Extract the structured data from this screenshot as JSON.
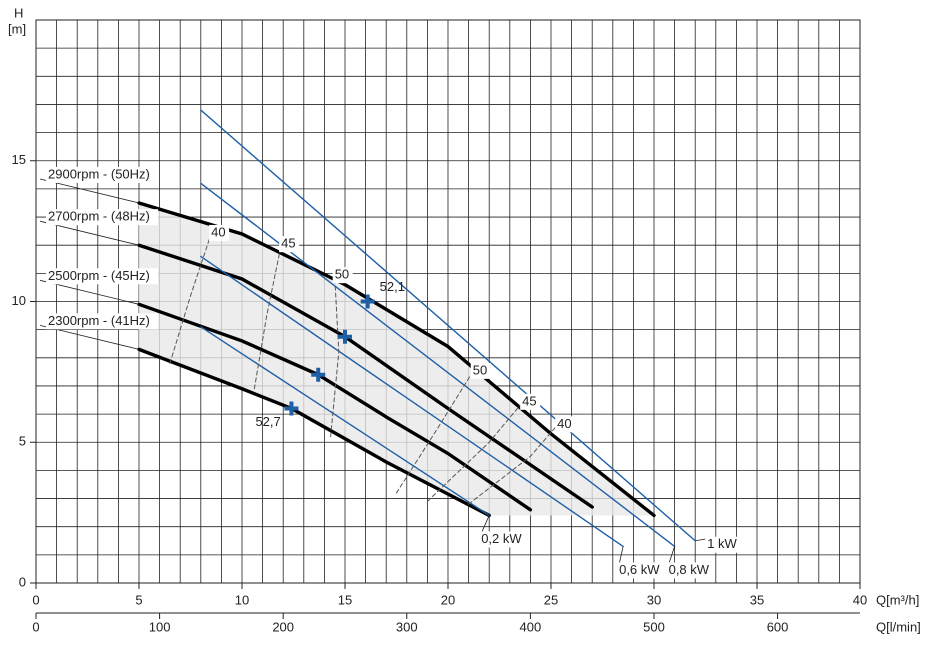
{
  "chart_data": {
    "type": "line",
    "y_label": "H",
    "y_unit": "[m]",
    "x_label": "Q[m³/h]",
    "x2_label": "Q[l/min]",
    "xlim": [
      0,
      40
    ],
    "xticks": [
      0,
      5,
      10,
      15,
      20,
      25,
      30,
      35,
      40
    ],
    "x2lim": [
      0,
      666.7
    ],
    "x2ticks": [
      0,
      100,
      200,
      300,
      400,
      500,
      600
    ],
    "ylim": [
      0,
      20
    ],
    "yticks": [
      0,
      5,
      10,
      15
    ],
    "grid": true,
    "minor_grid_step": 1,
    "series": [
      {
        "name": "2900rpm - (50Hz)",
        "kind": "speed",
        "color": "#000000",
        "x": [
          5,
          10,
          15,
          20,
          25,
          30
        ],
        "values": [
          13.5,
          12.4,
          10.6,
          8.4,
          5.3,
          2.4
        ]
      },
      {
        "name": "2700rpm - (48Hz)",
        "kind": "speed",
        "color": "#000000",
        "x": [
          5,
          10,
          15,
          20,
          25,
          27
        ],
        "values": [
          12.0,
          10.8,
          8.75,
          6.2,
          3.7,
          2.7
        ]
      },
      {
        "name": "2500rpm - (45Hz)",
        "kind": "speed",
        "color": "#000000",
        "x": [
          5,
          10,
          13.7,
          17,
          20,
          24
        ],
        "values": [
          9.9,
          8.6,
          7.4,
          5.9,
          4.6,
          2.6
        ]
      },
      {
        "name": "2300rpm - (41Hz)",
        "kind": "speed",
        "color": "#000000",
        "x": [
          5,
          10,
          12.4,
          17,
          22
        ],
        "values": [
          8.3,
          6.9,
          6.2,
          4.3,
          2.4
        ]
      },
      {
        "name": "1 kW",
        "kind": "power",
        "color": "#1f5fa6",
        "x": [
          8,
          32
        ],
        "values": [
          16.8,
          1.5
        ]
      },
      {
        "name": "0,8 kW",
        "kind": "power",
        "color": "#1f5fa6",
        "x": [
          8,
          31
        ],
        "values": [
          14.2,
          1.3
        ]
      },
      {
        "name": "0,6 kW",
        "kind": "power",
        "color": "#1f5fa6",
        "x": [
          8,
          28.5
        ],
        "values": [
          11.6,
          1.3
        ]
      },
      {
        "name": "0,2 kW",
        "kind": "power",
        "color": "#1f5fa6",
        "x": [
          8,
          22
        ],
        "values": [
          9.1,
          2.4
        ]
      },
      {
        "name": "40",
        "kind": "efficiency",
        "color": "#555555",
        "x": [
          6.5,
          7.5,
          8.5
        ],
        "values": [
          7.8,
          10.2,
          12.4
        ]
      },
      {
        "name": "45",
        "kind": "efficiency",
        "color": "#555555",
        "x": [
          10.6,
          11.2,
          11.9
        ],
        "values": [
          6.9,
          9.5,
          12.0
        ]
      },
      {
        "name": "50",
        "kind": "efficiency",
        "color": "#555555",
        "x": [
          14.3,
          14.7,
          14.5
        ],
        "values": [
          5.2,
          8.2,
          10.9
        ]
      },
      {
        "name": "50",
        "kind": "efficiency",
        "color": "#555555",
        "x": [
          17.5,
          19.5,
          21.2
        ],
        "values": [
          3.2,
          5.5,
          7.5
        ]
      },
      {
        "name": "45",
        "kind": "efficiency",
        "color": "#555555",
        "x": [
          19,
          22,
          23.6
        ],
        "values": [
          2.9,
          5.0,
          6.4
        ]
      },
      {
        "name": "40",
        "kind": "efficiency",
        "color": "#555555",
        "x": [
          21,
          24,
          25.3
        ],
        "values": [
          2.8,
          4.5,
          5.6
        ]
      }
    ],
    "points": {
      "color": "#1f5fa6",
      "x": [
        16.1,
        15,
        13.7,
        12.4
      ],
      "values": [
        10,
        8.75,
        7.4,
        6.2
      ],
      "labels": [
        "52,1",
        null,
        null,
        "52,7"
      ]
    }
  }
}
